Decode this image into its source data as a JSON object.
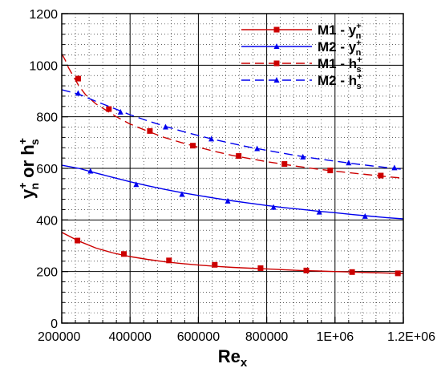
{
  "chart_data": {
    "type": "line",
    "title": "",
    "xlabel": "Re",
    "xlabel_sub": "x",
    "ylabel_parts": {
      "y": "y",
      "y_sup": "+",
      "y_sub": "n",
      "mid": " or ",
      "h": "h",
      "h_sup": "+",
      "h_sub": "s"
    },
    "xlim": [
      200000,
      1200000
    ],
    "ylim": [
      0,
      1200
    ],
    "x_ticks": [
      200000,
      400000,
      600000,
      800000,
      1000000,
      1200000
    ],
    "x_tick_labels": [
      "200000",
      "400000",
      "600000",
      "800000",
      "1E+06",
      "1.2E+06"
    ],
    "y_ticks": [
      0,
      200,
      400,
      600,
      800,
      1000,
      1200
    ],
    "y_tick_labels": [
      "0",
      "200",
      "400",
      "600",
      "800",
      "1000",
      "1200"
    ],
    "grid": true,
    "legend": "top-right",
    "series": [
      {
        "name": "M1 - y",
        "sup": "+",
        "sub": "n",
        "color": "#cc0000",
        "dash": "solid",
        "marker": "square",
        "x": [
          200000,
          250000,
          300000,
          350000,
          400000,
          450000,
          500000,
          550000,
          600000,
          650000,
          700000,
          750000,
          800000,
          850000,
          900000,
          950000,
          1000000,
          1050000,
          1100000,
          1150000,
          1200000
        ],
        "y": [
          352,
          318,
          291,
          272,
          258,
          247,
          238,
          231,
          225,
          220,
          216,
          213,
          210,
          207,
          204,
          202,
          200,
          198,
          196,
          194,
          192
        ],
        "marker_x": [
          246000,
          382000,
          514000,
          648000,
          782000,
          916000,
          1050000,
          1184000
        ],
        "marker_y": [
          320,
          268,
          243,
          226,
          213,
          204,
          198,
          193
        ]
      },
      {
        "name": "M2 - y",
        "sup": "+",
        "sub": "n",
        "color": "#0000ee",
        "dash": "solid",
        "marker": "triangle",
        "x": [
          200000,
          250000,
          300000,
          350000,
          400000,
          450000,
          500000,
          550000,
          600000,
          650000,
          700000,
          750000,
          800000,
          850000,
          900000,
          950000,
          1000000,
          1050000,
          1100000,
          1150000,
          1200000
        ],
        "y": [
          612,
          600,
          582,
          565,
          548,
          533,
          519,
          506,
          495,
          484,
          474,
          465,
          456,
          448,
          441,
          434,
          428,
          421,
          415,
          409,
          404
        ],
        "marker_x": [
          284000,
          418000,
          552000,
          686000,
          820000,
          954000,
          1088000
        ],
        "marker_y": [
          589,
          537,
          499,
          473,
          449,
          430,
          414
        ]
      },
      {
        "name": "M1 - h",
        "sup": "+",
        "sub": "s",
        "color": "#cc0000",
        "dash": "dashed",
        "marker": "square",
        "x": [
          200000,
          210000,
          220000,
          235000,
          250000,
          270000,
          300000,
          330000,
          360000,
          400000,
          450000,
          500000,
          550000,
          600000,
          650000,
          700000,
          750000,
          800000,
          850000,
          900000,
          950000,
          1000000,
          1050000,
          1100000,
          1150000,
          1200000
        ],
        "y": [
          1045,
          1020,
          990,
          955,
          920,
          885,
          850,
          825,
          800,
          772,
          745,
          720,
          700,
          682,
          665,
          650,
          638,
          626,
          616,
          606,
          597,
          589,
          582,
          575,
          568,
          562
        ],
        "marker_x": [
          248000,
          338000,
          458000,
          584000,
          718000,
          852000,
          986000,
          1134000
        ],
        "marker_y": [
          948,
          830,
          745,
          688,
          648,
          617,
          592,
          572
        ]
      },
      {
        "name": "M2 - h",
        "sup": "+",
        "sub": "s",
        "color": "#0000ee",
        "dash": "dashed",
        "marker": "triangle",
        "x": [
          200000,
          250000,
          300000,
          350000,
          400000,
          450000,
          500000,
          550000,
          600000,
          650000,
          700000,
          750000,
          800000,
          850000,
          900000,
          950000,
          1000000,
          1050000,
          1100000,
          1150000,
          1200000
        ],
        "y": [
          905,
          888,
          860,
          834,
          808,
          785,
          764,
          745,
          727,
          711,
          696,
          682,
          670,
          658,
          647,
          637,
          628,
          619,
          611,
          603,
          596
        ],
        "marker_x": [
          248000,
          372000,
          504000,
          638000,
          772000,
          906000,
          1040000,
          1174000
        ],
        "marker_y": [
          891,
          818,
          760,
          714,
          676,
          644,
          621,
          602
        ]
      }
    ]
  }
}
